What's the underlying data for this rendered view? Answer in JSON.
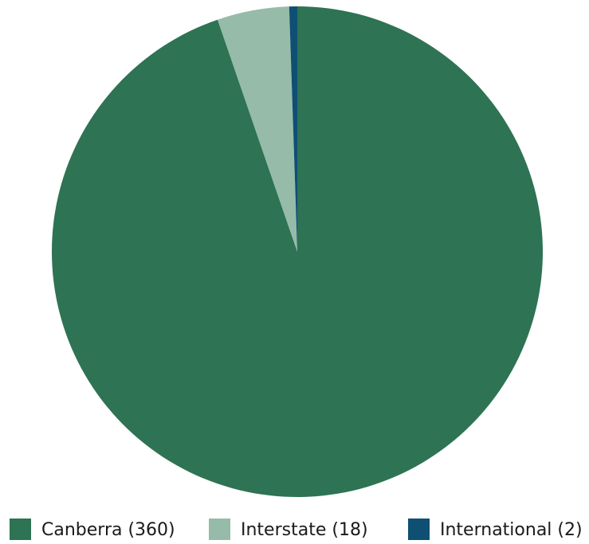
{
  "chart_data": {
    "type": "pie",
    "title": "",
    "series": [
      {
        "slices": [
          {
            "label": "Canberra",
            "value": 360,
            "color": "#2e7353",
            "legend_label": "Canberra (360)"
          },
          {
            "label": "Interstate",
            "value": 18,
            "color": "#96bba8",
            "legend_label": "Interstate (18)"
          },
          {
            "label": "International",
            "value": 2,
            "color": "#0f4f74",
            "legend_label": "International (2)"
          }
        ]
      }
    ],
    "legend": {
      "position": "bottom"
    },
    "start_angle": "12 o'clock",
    "direction": "clockwise"
  }
}
